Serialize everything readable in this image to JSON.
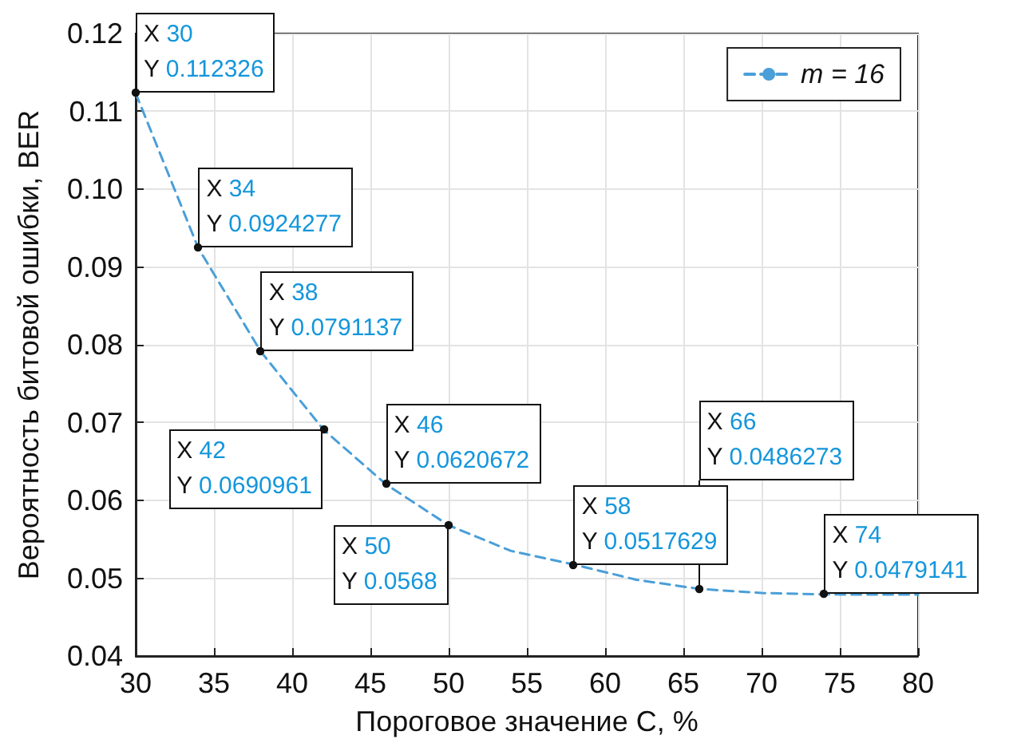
{
  "chart_data": {
    "type": "line",
    "xlabel": "Пороговое значение C, %",
    "ylabel": "Вероятность битовой ошибки, BER",
    "x": [
      30,
      34,
      38,
      42,
      46,
      50,
      54,
      58,
      62,
      66,
      70,
      74,
      78,
      80
    ],
    "series": [
      {
        "name": "m = 16",
        "color": "#4a9fd8",
        "values": [
          0.112326,
          0.0924277,
          0.0791137,
          0.0690961,
          0.0620672,
          0.0568,
          0.0535,
          0.0517629,
          0.0498,
          0.0486273,
          0.0481,
          0.0479141,
          0.0479,
          0.0479
        ]
      }
    ],
    "xlim": [
      30,
      80
    ],
    "xticks": [
      30,
      35,
      40,
      45,
      50,
      55,
      60,
      65,
      70,
      75,
      80
    ],
    "ylim": [
      0.04,
      0.12
    ],
    "yticks": [
      {
        "value": 0.04,
        "label": "0.04"
      },
      {
        "value": 0.05,
        "label": "0.05"
      },
      {
        "value": 0.06,
        "label": "0.06"
      },
      {
        "value": 0.07,
        "label": "0.07"
      },
      {
        "value": 0.08,
        "label": "0.08"
      },
      {
        "value": 0.09,
        "label": "0.09"
      },
      {
        "value": 0.1,
        "label": "0.10"
      },
      {
        "value": 0.11,
        "label": "0.11"
      },
      {
        "value": 0.12,
        "label": "0.12"
      }
    ],
    "grid": true,
    "legend": "top right",
    "line_style": "dashed",
    "annotations": [
      {
        "text": "X 30\nY 0.112326",
        "x": 30,
        "y": 0.112326
      },
      {
        "text": "X 34\nY 0.0924277",
        "x": 34,
        "y": 0.0924277
      },
      {
        "text": "X 38\nY 0.0791137",
        "x": 38,
        "y": 0.0791137
      },
      {
        "text": "X 42\nY 0.0690961",
        "x": 42,
        "y": 0.0690961
      },
      {
        "text": "X 46\nY 0.0620672",
        "x": 46,
        "y": 0.0620672
      },
      {
        "text": "X 50\nY 0.0568",
        "x": 50,
        "y": 0.0568
      },
      {
        "text": "X 58\nY 0.0517629",
        "x": 58,
        "y": 0.0517629
      },
      {
        "text": "X 66\nY 0.0486273",
        "x": 66,
        "y": 0.0486273
      },
      {
        "text": "X 74\nY 0.0479141",
        "x": 74,
        "y": 0.0479141
      }
    ]
  }
}
